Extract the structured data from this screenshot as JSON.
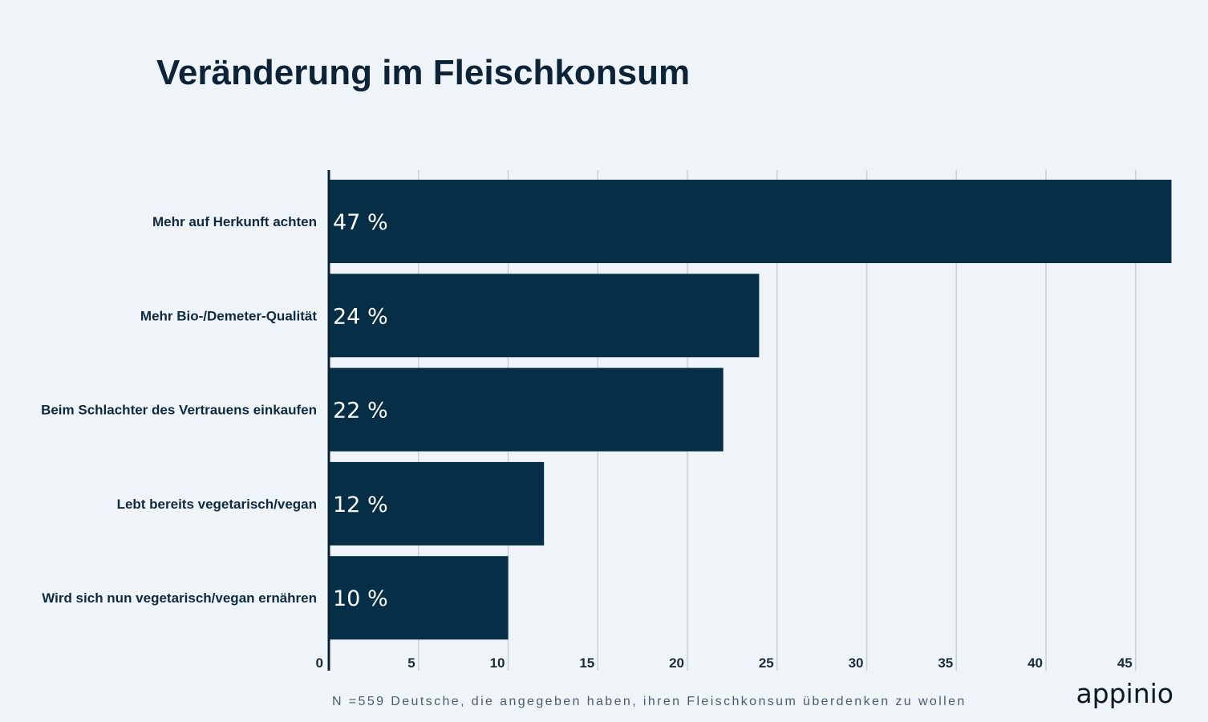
{
  "chart_data": {
    "type": "bar",
    "orientation": "horizontal",
    "title": "Veränderung im Fleischkonsum",
    "categories": [
      "Mehr auf Herkunft achten",
      "Mehr Bio-/Demeter-Qualität",
      "Beim Schlachter des Vertrauens einkaufen",
      "Lebt bereits vegetarisch/vegan",
      "Wird sich nun vegetarisch/vegan ernähren"
    ],
    "values": [
      47,
      24,
      22,
      12,
      10
    ],
    "value_labels": [
      "47 %",
      "24 %",
      "22 %",
      "12 %",
      "10 %"
    ],
    "xlim": [
      0,
      47
    ],
    "x_ticks": [
      0,
      5,
      10,
      15,
      20,
      25,
      30,
      35,
      40,
      45
    ],
    "grid": true,
    "bar_color": "#062f47",
    "footnote": "N =559 Deutsche, die angegeben haben, ihren Fleischkonsum überdenken zu wollen"
  },
  "brand": {
    "logo_text": "appinio"
  }
}
